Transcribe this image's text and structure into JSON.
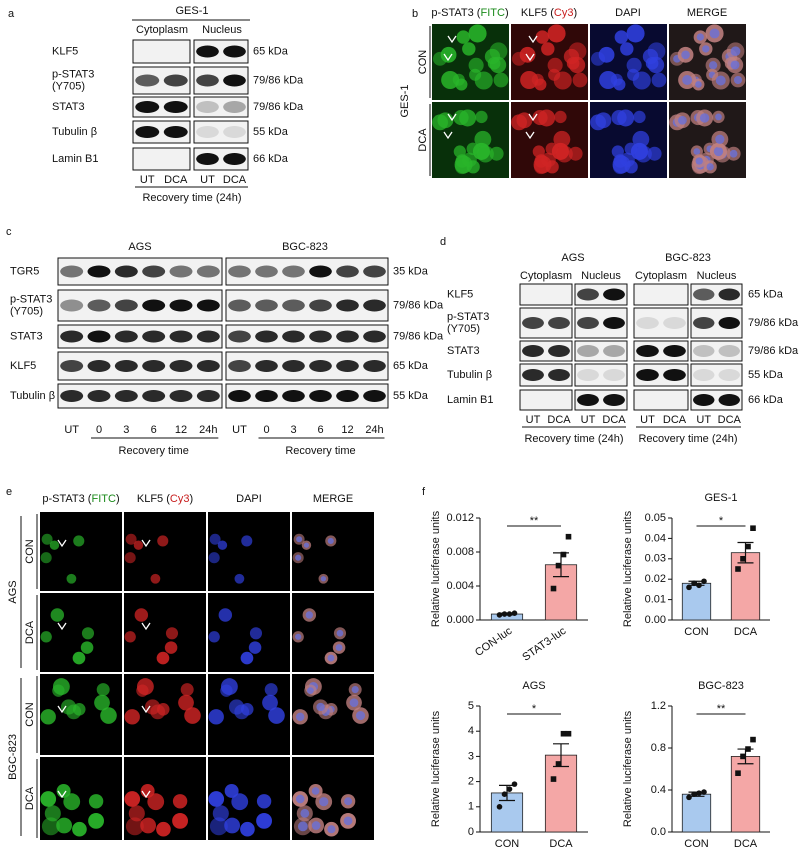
{
  "panel_a": {
    "label": "a",
    "cell_line": "GES-1",
    "fractions": [
      "Cytoplasm",
      "Nucleus"
    ],
    "rows": [
      {
        "name": [
          "KLF5"
        ],
        "size": "65 kDa"
      },
      {
        "name": [
          "p-STAT3",
          "(Y705)"
        ],
        "size": "79/86 kDa"
      },
      {
        "name": [
          "STAT3"
        ],
        "size": "79/86 kDa"
      },
      {
        "name": [
          "Tubulin β"
        ],
        "size": "55 kDa"
      },
      {
        "name": [
          "Lamin B1"
        ],
        "size": "66 kDa"
      }
    ],
    "lanes": [
      "UT",
      "DCA",
      "UT",
      "DCA"
    ],
    "xlabel": "Recovery time (24h)"
  },
  "panel_b": {
    "label": "b",
    "headers": [
      [
        "p-STAT3 (",
        "FITC",
        ")"
      ],
      [
        "KLF5 (",
        "Cy3",
        ")"
      ],
      [
        "DAPI"
      ],
      [
        "MERGE"
      ]
    ],
    "cell_line": "GES-1",
    "conditions": [
      "CON",
      "DCA"
    ]
  },
  "panel_c": {
    "label": "c",
    "cell_lines": [
      "AGS",
      "BGC-823"
    ],
    "rows": [
      {
        "name": [
          "TGR5"
        ],
        "size": "35 kDa"
      },
      {
        "name": [
          "p-STAT3",
          "(Y705)"
        ],
        "size": "79/86 kDa"
      },
      {
        "name": [
          "STAT3"
        ],
        "size": "79/86 kDa"
      },
      {
        "name": [
          "KLF5"
        ],
        "size": "65 kDa"
      },
      {
        "name": [
          "Tubulin β"
        ],
        "size": "55 kDa"
      }
    ],
    "lanes": [
      "UT",
      "0",
      "3",
      "6",
      "12",
      "24h"
    ],
    "xlabel": "Recovery time"
  },
  "panel_d": {
    "label": "d",
    "cell_lines": [
      "AGS",
      "BGC-823"
    ],
    "fractions": [
      "Cytoplasm",
      "Nucleus"
    ],
    "rows": [
      {
        "name": [
          "KLF5"
        ],
        "size": "65 kDa"
      },
      {
        "name": [
          "p-STAT3",
          "(Y705)"
        ],
        "size": "79/86 kDa"
      },
      {
        "name": [
          "STAT3"
        ],
        "size": "79/86 kDa"
      },
      {
        "name": [
          "Tubulin β"
        ],
        "size": "55 kDa"
      },
      {
        "name": [
          "Lamin B1"
        ],
        "size": "66 kDa"
      }
    ],
    "lanes": [
      "UT",
      "DCA",
      "UT",
      "DCA"
    ],
    "xlabel": "Recovery time (24h)"
  },
  "panel_e": {
    "label": "e",
    "headers": [
      [
        "p-STAT3 (",
        "FITC",
        ")"
      ],
      [
        "KLF5 (",
        "Cy3",
        ")"
      ],
      [
        "DAPI"
      ],
      [
        "MERGE"
      ]
    ],
    "groups": [
      {
        "name": "AGS",
        "conditions": [
          "CON",
          "DCA"
        ]
      },
      {
        "name": "BGC-823",
        "conditions": [
          "CON",
          "DCA"
        ]
      }
    ]
  },
  "panel_f": {
    "label": "f"
  },
  "chart_data": [
    {
      "type": "bar",
      "ylabel": "Relative luciferase units",
      "categories": [
        "CON-luc",
        "STAT3-luc"
      ],
      "values": [
        0.0007,
        0.0065
      ],
      "errors": [
        0.0001,
        0.0014
      ],
      "points": [
        [
          0.0006,
          0.0007,
          0.0007,
          0.0008
        ],
        [
          0.0037,
          0.0064,
          0.0077,
          0.0098
        ]
      ],
      "colors": [
        "#a9c9ee",
        "#f4a7a6"
      ],
      "significance": "**",
      "ylim": [
        0,
        0.012
      ],
      "yticks": [
        {
          "value": 0,
          "label": "0.000"
        },
        {
          "value": 0.004,
          "label": "0.004"
        },
        {
          "value": 0.008,
          "label": "0.008"
        },
        {
          "value": 0.012,
          "label": "0.012"
        }
      ]
    },
    {
      "type": "bar",
      "title": "GES-1",
      "ylabel": "Relative luciferase units",
      "categories": [
        "CON",
        "DCA"
      ],
      "values": [
        0.018,
        0.033
      ],
      "errors": [
        0.001,
        0.005
      ],
      "points": [
        [
          0.016,
          0.018,
          0.017,
          0.019
        ],
        [
          0.025,
          0.03,
          0.036,
          0.045
        ]
      ],
      "colors": [
        "#a9c9ee",
        "#f4a7a6"
      ],
      "significance": "*",
      "ylim": [
        0,
        0.05
      ],
      "yticks": [
        {
          "value": 0,
          "label": "0.00"
        },
        0.01,
        0.02,
        0.03,
        0.04,
        0.05
      ]
    },
    {
      "type": "bar",
      "title": "AGS",
      "ylabel": "Relative luciferase units",
      "categories": [
        "CON",
        "DCA"
      ],
      "values": [
        1.55,
        3.05
      ],
      "errors": [
        0.3,
        0.45
      ],
      "points": [
        [
          1.0,
          1.5,
          1.7,
          1.9
        ],
        [
          2.1,
          2.7,
          3.9,
          3.9
        ]
      ],
      "colors": [
        "#a9c9ee",
        "#f4a7a6"
      ],
      "significance": "*",
      "ylim": [
        0,
        5
      ],
      "yticks": [
        0,
        1,
        2,
        3,
        4,
        5
      ]
    },
    {
      "type": "bar",
      "title": "BGC-823",
      "ylabel": "Relative luciferase units",
      "categories": [
        "CON",
        "DCA"
      ],
      "values": [
        0.36,
        0.72
      ],
      "errors": [
        0.02,
        0.07
      ],
      "points": [
        [
          0.33,
          0.36,
          0.37,
          0.38
        ],
        [
          0.56,
          0.72,
          0.79,
          0.88
        ]
      ],
      "colors": [
        "#a9c9ee",
        "#f4a7a6"
      ],
      "significance": "**",
      "ylim": [
        0,
        1.2
      ],
      "yticks": [
        {
          "value": 0,
          "label": "0.0"
        },
        0.4,
        0.8,
        {
          "value": 1.2,
          "label": "1.2"
        }
      ]
    }
  ]
}
